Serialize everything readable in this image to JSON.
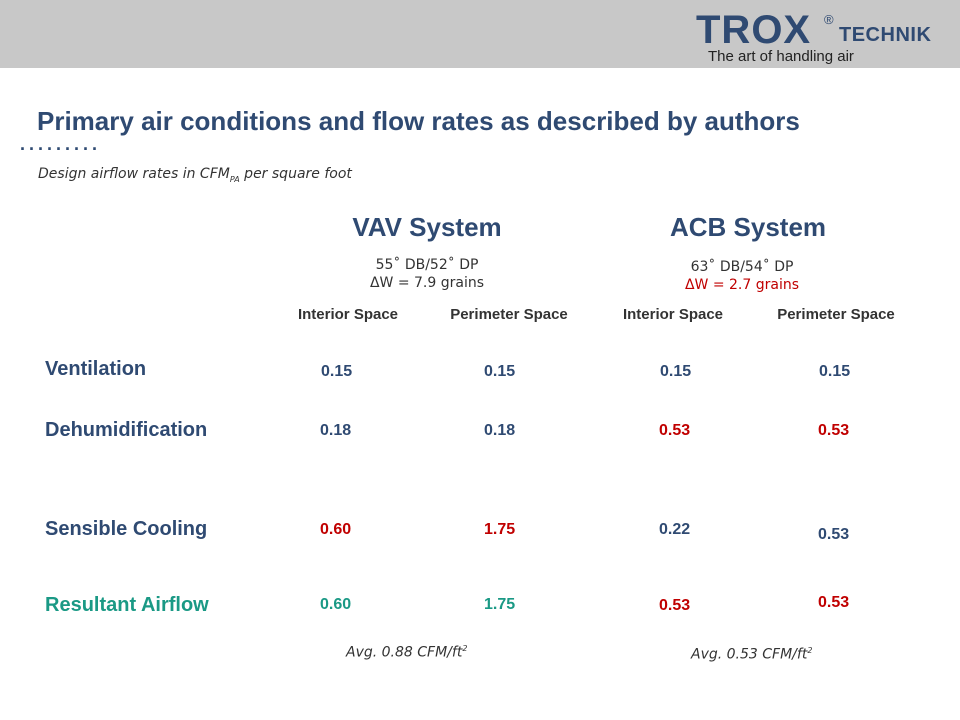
{
  "header": {
    "logo_brand": "TROX",
    "logo_registered": "®",
    "logo_technik": "TECHNIK",
    "logo_tagline": "The art of handling air"
  },
  "title": "Primary air conditions and flow rates as described by authors",
  "dots": ".........",
  "subtitle": {
    "prefix": "Design airflow rates in CFM",
    "sub": "PA",
    "suffix": " per square foot"
  },
  "vav": {
    "title": "VAV System",
    "condition": "55˚ DB/52˚ DP",
    "delta": "ΔW = 7.9 grains",
    "avg_text": "Avg. 0.88 CFM/ft",
    "avg_sup": "2"
  },
  "acb": {
    "title": "ACB System",
    "condition": "63˚ DB/54˚ DP",
    "delta": "ΔW = 2.7 grains",
    "avg_text": "Avg. 0.53 CFM/ft",
    "avg_sup": "2"
  },
  "columns": [
    "Interior Space",
    "Perimeter Space",
    "Interior Space",
    "Perimeter Space"
  ],
  "rows": [
    {
      "label": "Ventilation",
      "values": [
        "0.15",
        "0.15",
        "0.15",
        "0.15"
      ]
    },
    {
      "label": "Dehumidification",
      "values": [
        "0.18",
        "0.18",
        "0.53",
        "0.53"
      ]
    },
    {
      "label": "Sensible Cooling",
      "values": [
        "0.60",
        "1.75",
        "0.22",
        "0.53"
      ]
    },
    {
      "label": "Resultant Airflow",
      "values": [
        "0.60",
        "1.75",
        "0.53",
        "0.53"
      ]
    }
  ],
  "colors": {
    "navy": "#2f4a72",
    "red": "#c00000",
    "teal": "#1a9985",
    "header_gray": "#c8c8c8"
  }
}
